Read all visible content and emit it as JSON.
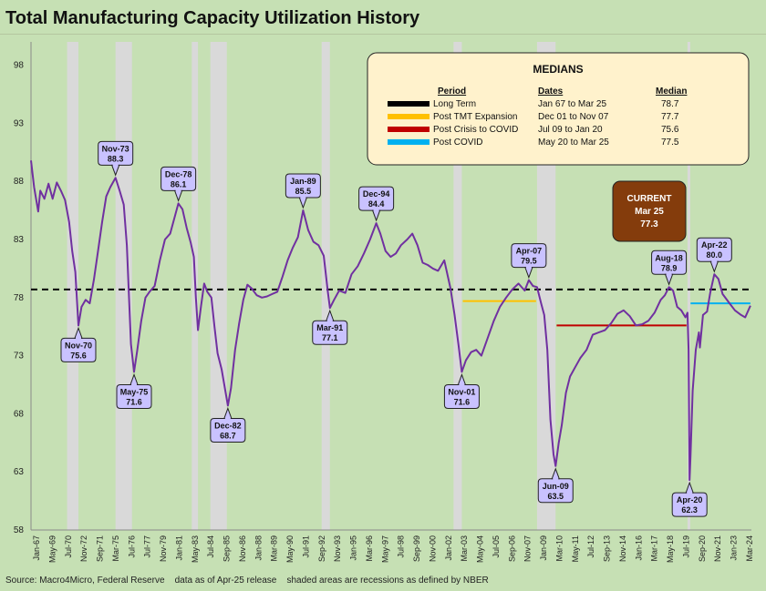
{
  "title": "Total Manufacturing Capacity Utilization History",
  "source": "Source: Macro4Micro, Federal Reserve    data as of Apr-25 release    shaded areas are recessions as defined by NBER",
  "colors": {
    "background": "#c6e0b4",
    "line": "#7030a0",
    "recession": "#d9d9d9",
    "label_fill": "#c9c2ff",
    "current_fill": "#843c0c",
    "legend_fill": "#fff2cc"
  },
  "chart_data": {
    "type": "line",
    "title": "Total Manufacturing Capacity Utilization History",
    "ylim": [
      58,
      100
    ],
    "yticks": [
      58,
      63,
      68,
      73,
      78,
      83,
      88,
      93,
      98
    ],
    "x_tick_labels": [
      "Jan-67",
      "May-69",
      "Jul-70",
      "Nov-72",
      "Sep-71",
      "Mar-75",
      "Jul-76",
      "Jul-77",
      "Nov-79",
      "Jan-81",
      "May-83",
      "Jul-84",
      "Sep-85",
      "Nov-86",
      "Jan-88",
      "Mar-89",
      "May-90",
      "Jul-91",
      "Sep-92",
      "Nov-93",
      "Jan-95",
      "Mar-96",
      "May-97",
      "Jul-98",
      "Sep-99",
      "Nov-00",
      "Jan-02",
      "Mar-03",
      "May-04",
      "Jul-05",
      "Sep-06",
      "Nov-07",
      "Jan-09",
      "Mar-10",
      "May-11",
      "Jul-12",
      "Sep-13",
      "Nov-14",
      "Jan-16",
      "Mar-17",
      "May-18",
      "Jul-19",
      "Sep-20",
      "Nov-21",
      "Jan-23",
      "Mar-24"
    ],
    "grid": false,
    "series": [
      {
        "values_ym": [
          [
            "1967-01",
            89.8
          ],
          [
            "1967-04",
            87.5
          ],
          [
            "1967-08",
            85.4
          ],
          [
            "1967-10",
            87.2
          ],
          [
            "1968-02",
            86.5
          ],
          [
            "1968-06",
            87.8
          ],
          [
            "1968-10",
            86.5
          ],
          [
            "1969-02",
            87.9
          ],
          [
            "1969-06",
            87.2
          ],
          [
            "1969-10",
            86.4
          ],
          [
            "1970-02",
            84.5
          ],
          [
            "1970-05",
            82.0
          ],
          [
            "1970-08",
            80.2
          ],
          [
            "1970-11",
            75.6
          ],
          [
            "1971-02",
            77.2
          ],
          [
            "1971-06",
            77.8
          ],
          [
            "1971-10",
            77.5
          ],
          [
            "1972-02",
            79.5
          ],
          [
            "1972-06",
            82.0
          ],
          [
            "1972-10",
            84.5
          ],
          [
            "1973-02",
            86.7
          ],
          [
            "1973-06",
            87.5
          ],
          [
            "1973-11",
            88.3
          ],
          [
            "1974-03",
            87.2
          ],
          [
            "1974-07",
            86.0
          ],
          [
            "1974-10",
            82.5
          ],
          [
            "1975-02",
            74.0
          ],
          [
            "1975-05",
            71.6
          ],
          [
            "1975-08",
            73.4
          ],
          [
            "1975-12",
            76.0
          ],
          [
            "1976-04",
            78.0
          ],
          [
            "1976-08",
            78.5
          ],
          [
            "1977-01",
            79.0
          ],
          [
            "1977-06",
            81.2
          ],
          [
            "1977-11",
            83.0
          ],
          [
            "1978-04",
            83.5
          ],
          [
            "1978-08",
            84.8
          ],
          [
            "1978-12",
            86.1
          ],
          [
            "1979-04",
            85.6
          ],
          [
            "1979-08",
            84.0
          ],
          [
            "1979-12",
            82.7
          ],
          [
            "1980-03",
            81.5
          ],
          [
            "1980-05",
            78.0
          ],
          [
            "1980-07",
            75.2
          ],
          [
            "1980-10",
            77.3
          ],
          [
            "1981-01",
            79.2
          ],
          [
            "1981-04",
            78.5
          ],
          [
            "1981-08",
            78.0
          ],
          [
            "1981-11",
            75.5
          ],
          [
            "1982-02",
            73.2
          ],
          [
            "1982-06",
            71.8
          ],
          [
            "1982-12",
            68.7
          ],
          [
            "1983-03",
            70.2
          ],
          [
            "1983-07",
            73.5
          ],
          [
            "1983-11",
            75.8
          ],
          [
            "1984-03",
            77.8
          ],
          [
            "1984-07",
            79.1
          ],
          [
            "1984-11",
            78.8
          ],
          [
            "1985-04",
            78.2
          ],
          [
            "1985-09",
            78.0
          ],
          [
            "1986-02",
            78.1
          ],
          [
            "1986-07",
            78.3
          ],
          [
            "1986-12",
            78.5
          ],
          [
            "1987-05",
            79.8
          ],
          [
            "1987-10",
            81.2
          ],
          [
            "1988-03",
            82.3
          ],
          [
            "1988-08",
            83.2
          ],
          [
            "1989-01",
            85.5
          ],
          [
            "1989-06",
            83.8
          ],
          [
            "1989-11",
            82.8
          ],
          [
            "1990-04",
            82.5
          ],
          [
            "1990-09",
            81.6
          ],
          [
            "1991-01",
            78.5
          ],
          [
            "1991-03",
            77.1
          ],
          [
            "1991-07",
            77.8
          ],
          [
            "1991-12",
            78.6
          ],
          [
            "1992-06",
            78.4
          ],
          [
            "1992-12",
            80.0
          ],
          [
            "1993-06",
            80.7
          ],
          [
            "1993-12",
            81.8
          ],
          [
            "1994-06",
            83.0
          ],
          [
            "1994-12",
            84.4
          ],
          [
            "1995-04",
            83.5
          ],
          [
            "1995-09",
            82.0
          ],
          [
            "1996-02",
            81.5
          ],
          [
            "1996-07",
            81.8
          ],
          [
            "1996-12",
            82.5
          ],
          [
            "1997-06",
            83.0
          ],
          [
            "1997-11",
            83.5
          ],
          [
            "1998-04",
            82.5
          ],
          [
            "1998-09",
            81.0
          ],
          [
            "1999-02",
            80.8
          ],
          [
            "1999-07",
            80.5
          ],
          [
            "1999-12",
            80.3
          ],
          [
            "2000-06",
            81.2
          ],
          [
            "2000-12",
            78.8
          ],
          [
            "2001-04",
            76.5
          ],
          [
            "2001-08",
            73.8
          ],
          [
            "2001-11",
            71.6
          ],
          [
            "2002-03",
            72.6
          ],
          [
            "2002-08",
            73.3
          ],
          [
            "2003-01",
            73.5
          ],
          [
            "2003-06",
            73.0
          ],
          [
            "2003-12",
            74.5
          ],
          [
            "2004-06",
            76.0
          ],
          [
            "2004-12",
            77.2
          ],
          [
            "2005-06",
            78.0
          ],
          [
            "2005-12",
            78.7
          ],
          [
            "2006-06",
            79.2
          ],
          [
            "2006-12",
            78.6
          ],
          [
            "2007-04",
            79.5
          ],
          [
            "2007-08",
            79.0
          ],
          [
            "2007-12",
            78.9
          ],
          [
            "2008-04",
            77.5
          ],
          [
            "2008-07",
            76.5
          ],
          [
            "2008-10",
            73.5
          ],
          [
            "2009-01",
            67.5
          ],
          [
            "2009-04",
            64.5
          ],
          [
            "2009-06",
            63.5
          ],
          [
            "2009-09",
            65.5
          ],
          [
            "2009-12",
            67.0
          ],
          [
            "2010-04",
            69.8
          ],
          [
            "2010-08",
            71.2
          ],
          [
            "2011-01",
            72.0
          ],
          [
            "2011-06",
            72.8
          ],
          [
            "2011-12",
            73.5
          ],
          [
            "2012-06",
            74.8
          ],
          [
            "2012-12",
            75.0
          ],
          [
            "2013-06",
            75.2
          ],
          [
            "2013-12",
            75.8
          ],
          [
            "2014-06",
            76.6
          ],
          [
            "2014-12",
            76.9
          ],
          [
            "2015-06",
            76.4
          ],
          [
            "2015-12",
            75.6
          ],
          [
            "2016-06",
            75.7
          ],
          [
            "2016-12",
            76.0
          ],
          [
            "2017-06",
            76.7
          ],
          [
            "2017-12",
            77.8
          ],
          [
            "2018-04",
            78.2
          ],
          [
            "2018-08",
            78.9
          ],
          [
            "2018-12",
            78.6
          ],
          [
            "2019-04",
            77.2
          ],
          [
            "2019-08",
            76.9
          ],
          [
            "2019-12",
            76.3
          ],
          [
            "2020-02",
            76.7
          ],
          [
            "2020-03",
            73.5
          ],
          [
            "2020-04",
            62.3
          ],
          [
            "2020-05",
            64.5
          ],
          [
            "2020-07",
            70.0
          ],
          [
            "2020-10",
            73.5
          ],
          [
            "2021-01",
            75.0
          ],
          [
            "2021-02",
            73.7
          ],
          [
            "2021-05",
            76.5
          ],
          [
            "2021-09",
            76.8
          ],
          [
            "2021-12",
            78.4
          ],
          [
            "2022-04",
            80.0
          ],
          [
            "2022-08",
            79.6
          ],
          [
            "2022-12",
            78.3
          ],
          [
            "2023-06",
            77.6
          ],
          [
            "2023-12",
            76.9
          ],
          [
            "2024-06",
            76.5
          ],
          [
            "2024-10",
            76.3
          ],
          [
            "2025-03",
            77.3
          ]
        ]
      }
    ],
    "reference_line": {
      "label": "Long Term",
      "value": 78.7,
      "style": "dashed",
      "color": "#000000"
    },
    "median_segments": [
      {
        "label": "Post TMT Expansion",
        "value": 77.7,
        "from": "2001-12",
        "to": "2007-11",
        "color": "#ffc000"
      },
      {
        "label": "Post Crisis to COVID",
        "value": 75.6,
        "from": "2009-07",
        "to": "2020-01",
        "color": "#c00000"
      },
      {
        "label": "Post COVID",
        "value": 77.5,
        "from": "2020-05",
        "to": "2025-03",
        "color": "#00b0f0"
      }
    ],
    "recessions": [
      [
        "1969-12",
        "1970-11"
      ],
      [
        "1973-11",
        "1975-03"
      ],
      [
        "1980-01",
        "1980-07"
      ],
      [
        "1981-07",
        "1982-11"
      ],
      [
        "1990-07",
        "1991-03"
      ],
      [
        "2001-03",
        "2001-11"
      ],
      [
        "2007-12",
        "2009-06"
      ],
      [
        "2020-02",
        "2020-04"
      ]
    ],
    "annotations": [
      {
        "name": "Nov-73",
        "value": "88.3",
        "date": "1973-11",
        "dir": "up"
      },
      {
        "name": "Dec-78",
        "value": "86.1",
        "date": "1978-12",
        "dir": "up"
      },
      {
        "name": "Jan-89",
        "value": "85.5",
        "date": "1989-01",
        "dir": "up"
      },
      {
        "name": "Dec-94",
        "value": "84.4",
        "date": "1994-12",
        "dir": "up"
      },
      {
        "name": "Apr-07",
        "value": "79.5",
        "date": "2007-04",
        "dir": "up"
      },
      {
        "name": "Aug-18",
        "value": "78.9",
        "date": "2018-08",
        "dir": "up"
      },
      {
        "name": "Apr-22",
        "value": "80.0",
        "date": "2022-04",
        "dir": "up"
      },
      {
        "name": "Nov-70",
        "value": "75.6",
        "date": "1970-11",
        "dir": "down"
      },
      {
        "name": "May-75",
        "value": "71.6",
        "date": "1975-05",
        "dir": "down"
      },
      {
        "name": "Dec-82",
        "value": "68.7",
        "date": "1982-12",
        "dir": "down"
      },
      {
        "name": "Mar-91",
        "value": "77.1",
        "date": "1991-03",
        "dir": "down"
      },
      {
        "name": "Nov-01",
        "value": "71.6",
        "date": "2001-11",
        "dir": "down"
      },
      {
        "name": "Jun-09",
        "value": "63.5",
        "date": "2009-06",
        "dir": "down"
      },
      {
        "name": "Apr-20",
        "value": "62.3",
        "date": "2020-04",
        "dir": "down"
      }
    ],
    "legend": {
      "title": "MEDIANS",
      "headers": [
        "Period",
        "Dates",
        "Median"
      ],
      "rows": [
        {
          "period": "Long Term",
          "dates": "Jan 67 to Mar 25",
          "median": "78.7",
          "color": "#000000"
        },
        {
          "period": "Post TMT Expansion",
          "dates": "Dec 01 to Nov 07",
          "median": "77.7",
          "color": "#ffc000"
        },
        {
          "period": "Post Crisis to COVID",
          "dates": "Jul 09 to Jan 20",
          "median": "75.6",
          "color": "#c00000"
        },
        {
          "period": "Post COVID",
          "dates": "May 20 to Mar 25",
          "median": "77.5",
          "color": "#00b0f0"
        }
      ]
    },
    "current": {
      "lines": [
        "CURRENT",
        "Mar 25",
        "77.3"
      ]
    }
  }
}
